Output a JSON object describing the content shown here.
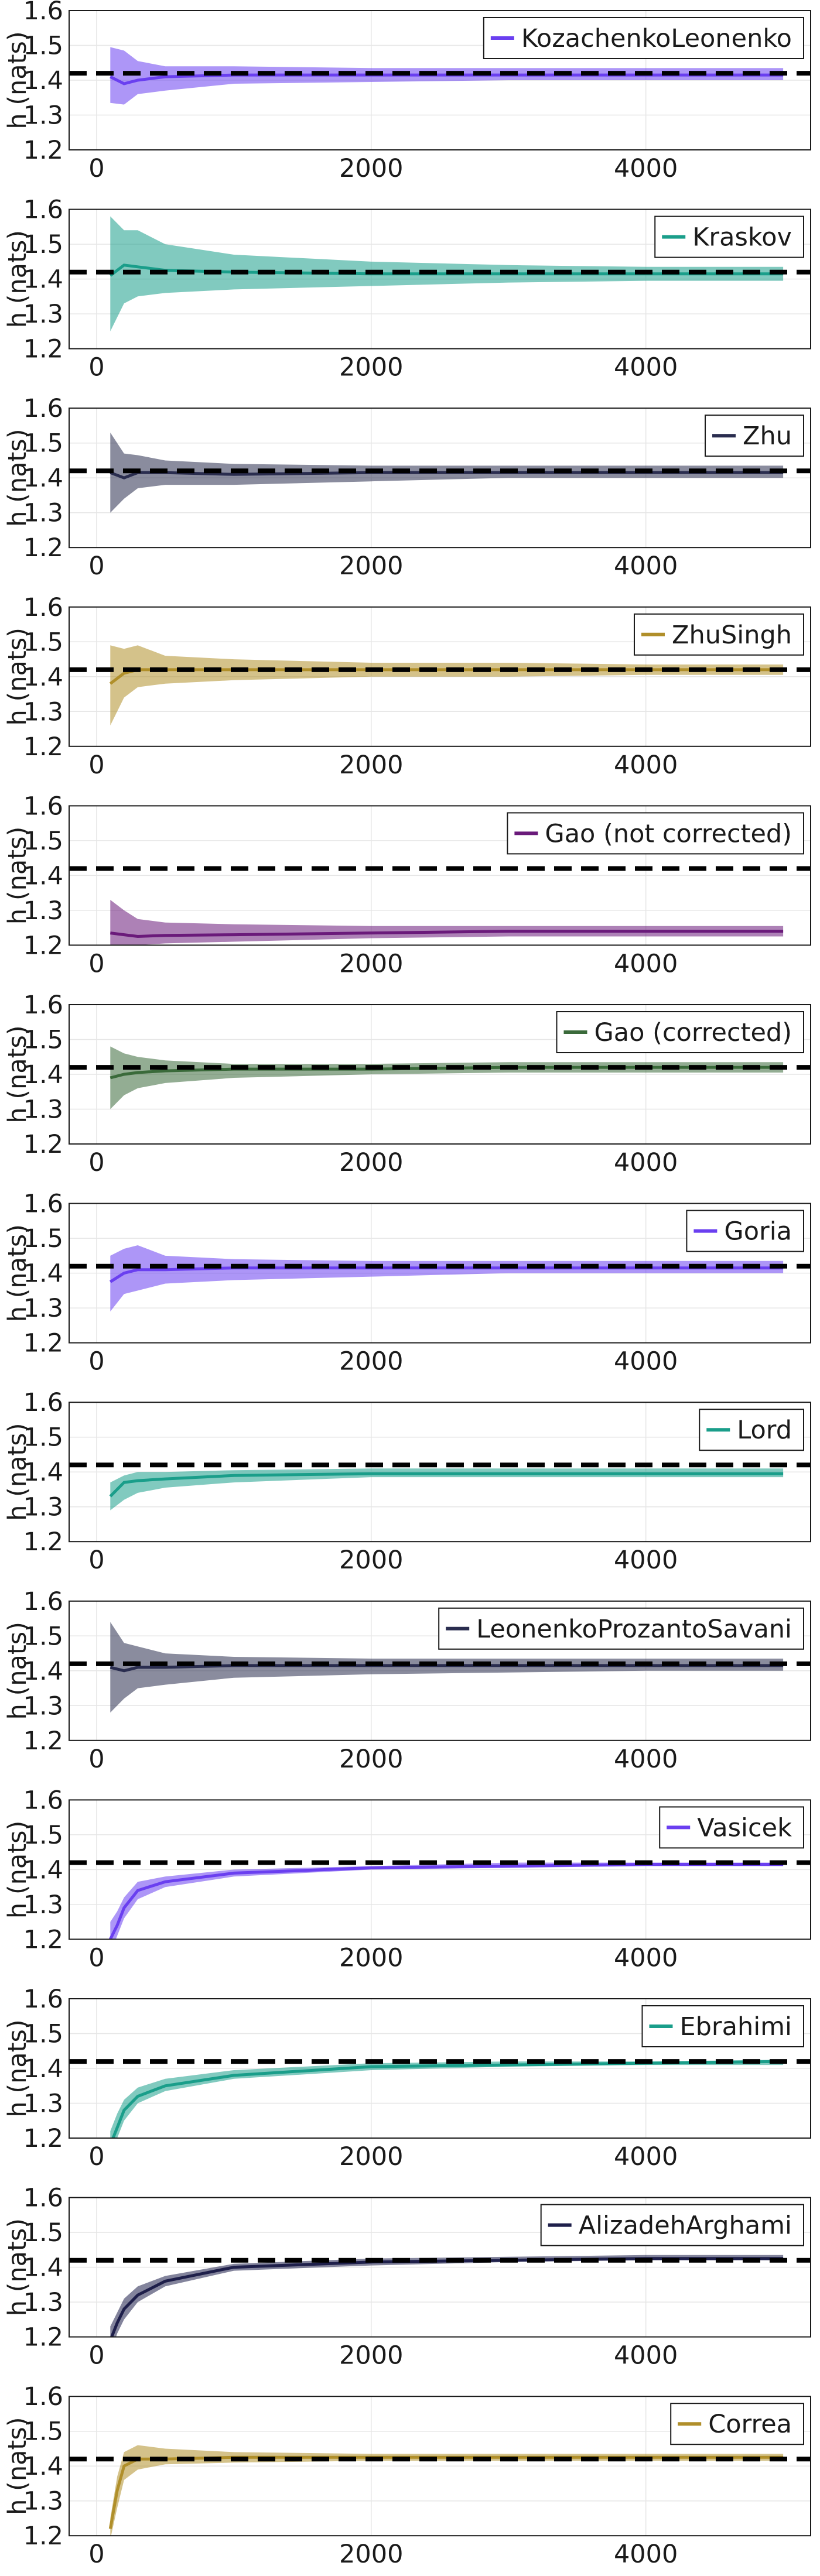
{
  "reference_value": 1.42,
  "ylabel": "h (nats)",
  "x_ticks": [
    0,
    2000,
    4000
  ],
  "y_ticks": [
    1.2,
    1.3,
    1.4,
    1.5,
    1.6
  ],
  "chart_data": [
    {
      "type": "line",
      "legend": "KozachenkoLeonenko",
      "color": "#6a3ff0",
      "xlim": [
        -200,
        5200
      ],
      "ylim": [
        1.2,
        1.6
      ],
      "x": [
        100,
        200,
        300,
        500,
        1000,
        2000,
        3000,
        4000,
        5000
      ],
      "mean": [
        1.41,
        1.39,
        1.4,
        1.41,
        1.415,
        1.415,
        1.415,
        1.415,
        1.415
      ],
      "lower": [
        1.335,
        1.33,
        1.36,
        1.37,
        1.39,
        1.395,
        1.4,
        1.4,
        1.4
      ],
      "upper": [
        1.495,
        1.485,
        1.455,
        1.44,
        1.44,
        1.435,
        1.435,
        1.435,
        1.435
      ]
    },
    {
      "type": "line",
      "legend": "Kraskov",
      "color": "#1a9e8a",
      "xlim": [
        -200,
        5200
      ],
      "ylim": [
        1.2,
        1.6
      ],
      "x": [
        100,
        200,
        300,
        500,
        1000,
        2000,
        3000,
        4000,
        5000
      ],
      "mean": [
        1.41,
        1.44,
        1.435,
        1.425,
        1.42,
        1.415,
        1.415,
        1.415,
        1.415
      ],
      "lower": [
        1.25,
        1.33,
        1.35,
        1.36,
        1.37,
        1.38,
        1.39,
        1.395,
        1.395
      ],
      "upper": [
        1.58,
        1.54,
        1.54,
        1.5,
        1.47,
        1.45,
        1.44,
        1.435,
        1.435
      ]
    },
    {
      "type": "line",
      "legend": "Zhu",
      "color": "#2a2d4f",
      "xlim": [
        -200,
        5200
      ],
      "ylim": [
        1.2,
        1.6
      ],
      "x": [
        100,
        200,
        300,
        500,
        1000,
        2000,
        3000,
        4000,
        5000
      ],
      "mean": [
        1.415,
        1.4,
        1.415,
        1.415,
        1.41,
        1.415,
        1.415,
        1.415,
        1.415
      ],
      "lower": [
        1.3,
        1.34,
        1.37,
        1.38,
        1.38,
        1.39,
        1.4,
        1.4,
        1.4
      ],
      "upper": [
        1.53,
        1.47,
        1.465,
        1.45,
        1.44,
        1.435,
        1.435,
        1.435,
        1.435
      ]
    },
    {
      "type": "line",
      "legend": "ZhuSingh",
      "color": "#b08f2a",
      "xlim": [
        -200,
        5200
      ],
      "ylim": [
        1.2,
        1.6
      ],
      "x": [
        100,
        200,
        300,
        500,
        1000,
        2000,
        3000,
        4000,
        5000
      ],
      "mean": [
        1.38,
        1.41,
        1.42,
        1.42,
        1.42,
        1.42,
        1.42,
        1.42,
        1.42
      ],
      "lower": [
        1.26,
        1.34,
        1.37,
        1.38,
        1.39,
        1.4,
        1.4,
        1.405,
        1.405
      ],
      "upper": [
        1.49,
        1.48,
        1.49,
        1.46,
        1.45,
        1.44,
        1.44,
        1.435,
        1.435
      ]
    },
    {
      "type": "line",
      "legend": "Gao (not corrected)",
      "color": "#6a1a7a",
      "xlim": [
        -200,
        5200
      ],
      "ylim": [
        1.2,
        1.6
      ],
      "x": [
        100,
        200,
        300,
        500,
        1000,
        2000,
        3000,
        4000,
        5000
      ],
      "mean": [
        1.235,
        1.23,
        1.225,
        1.228,
        1.23,
        1.235,
        1.24,
        1.24,
        1.24
      ],
      "lower": [
        1.2,
        1.2,
        1.2,
        1.205,
        1.21,
        1.22,
        1.225,
        1.225,
        1.225
      ],
      "upper": [
        1.33,
        1.3,
        1.275,
        1.265,
        1.26,
        1.255,
        1.255,
        1.255,
        1.255
      ]
    },
    {
      "type": "line",
      "legend": "Gao (corrected)",
      "color": "#3a6a3a",
      "xlim": [
        -200,
        5200
      ],
      "ylim": [
        1.2,
        1.6
      ],
      "x": [
        100,
        200,
        300,
        500,
        1000,
        2000,
        3000,
        4000,
        5000
      ],
      "mean": [
        1.39,
        1.4,
        1.405,
        1.41,
        1.415,
        1.415,
        1.42,
        1.42,
        1.42
      ],
      "lower": [
        1.3,
        1.34,
        1.36,
        1.375,
        1.39,
        1.4,
        1.405,
        1.405,
        1.405
      ],
      "upper": [
        1.48,
        1.46,
        1.45,
        1.44,
        1.43,
        1.43,
        1.435,
        1.435,
        1.435
      ]
    },
    {
      "type": "line",
      "legend": "Goria",
      "color": "#6a3ff0",
      "xlim": [
        -200,
        5200
      ],
      "ylim": [
        1.2,
        1.6
      ],
      "x": [
        100,
        200,
        300,
        500,
        1000,
        2000,
        3000,
        4000,
        5000
      ],
      "mean": [
        1.375,
        1.4,
        1.41,
        1.41,
        1.415,
        1.415,
        1.415,
        1.415,
        1.415
      ],
      "lower": [
        1.29,
        1.34,
        1.35,
        1.37,
        1.38,
        1.39,
        1.4,
        1.4,
        1.4
      ],
      "upper": [
        1.45,
        1.47,
        1.48,
        1.45,
        1.44,
        1.435,
        1.435,
        1.435,
        1.435
      ]
    },
    {
      "type": "line",
      "legend": "Lord",
      "color": "#1a9e8a",
      "xlim": [
        -200,
        5200
      ],
      "ylim": [
        1.2,
        1.6
      ],
      "x": [
        100,
        200,
        300,
        500,
        1000,
        2000,
        3000,
        4000,
        5000
      ],
      "mean": [
        1.33,
        1.37,
        1.375,
        1.38,
        1.39,
        1.395,
        1.395,
        1.395,
        1.395
      ],
      "lower": [
        1.29,
        1.32,
        1.34,
        1.355,
        1.37,
        1.385,
        1.385,
        1.385,
        1.385
      ],
      "upper": [
        1.37,
        1.39,
        1.4,
        1.4,
        1.405,
        1.41,
        1.41,
        1.41,
        1.41
      ]
    },
    {
      "type": "line",
      "legend": "LeonenkoProzantoSavani",
      "color": "#2a2d4f",
      "xlim": [
        -200,
        5200
      ],
      "ylim": [
        1.2,
        1.6
      ],
      "x": [
        100,
        200,
        300,
        500,
        1000,
        2000,
        3000,
        4000,
        5000
      ],
      "mean": [
        1.41,
        1.4,
        1.41,
        1.41,
        1.415,
        1.415,
        1.415,
        1.415,
        1.415
      ],
      "lower": [
        1.28,
        1.32,
        1.35,
        1.36,
        1.38,
        1.39,
        1.395,
        1.4,
        1.4
      ],
      "upper": [
        1.54,
        1.48,
        1.47,
        1.45,
        1.44,
        1.435,
        1.435,
        1.435,
        1.435
      ]
    },
    {
      "type": "line",
      "legend": "Vasicek",
      "color": "#6a3ff0",
      "xlim": [
        -200,
        5200
      ],
      "ylim": [
        1.2,
        1.6
      ],
      "x": [
        100,
        150,
        200,
        300,
        500,
        1000,
        2000,
        3000,
        4000,
        5000
      ],
      "mean": [
        1.2,
        1.24,
        1.29,
        1.34,
        1.365,
        1.39,
        1.405,
        1.41,
        1.415,
        1.415
      ],
      "lower": [
        1.16,
        1.21,
        1.26,
        1.315,
        1.35,
        1.38,
        1.4,
        1.405,
        1.41,
        1.41
      ],
      "upper": [
        1.25,
        1.28,
        1.32,
        1.365,
        1.38,
        1.4,
        1.41,
        1.42,
        1.42,
        1.42
      ]
    },
    {
      "type": "line",
      "legend": "Ebrahimi",
      "color": "#1a9e8a",
      "xlim": [
        -200,
        5200
      ],
      "ylim": [
        1.2,
        1.6
      ],
      "x": [
        100,
        150,
        200,
        300,
        500,
        1000,
        2000,
        3000,
        4000,
        5000
      ],
      "mean": [
        1.18,
        1.23,
        1.28,
        1.32,
        1.35,
        1.38,
        1.405,
        1.41,
        1.415,
        1.42
      ],
      "lower": [
        1.14,
        1.2,
        1.25,
        1.3,
        1.335,
        1.37,
        1.395,
        1.405,
        1.41,
        1.41
      ],
      "upper": [
        1.22,
        1.27,
        1.31,
        1.345,
        1.37,
        1.395,
        1.415,
        1.42,
        1.42,
        1.425
      ]
    },
    {
      "type": "line",
      "legend": "AlizadehArghami",
      "color": "#1e1f4a",
      "xlim": [
        -200,
        5200
      ],
      "ylim": [
        1.2,
        1.6
      ],
      "x": [
        100,
        150,
        200,
        300,
        500,
        1000,
        2000,
        3000,
        4000,
        5000
      ],
      "mean": [
        1.19,
        1.24,
        1.28,
        1.32,
        1.36,
        1.4,
        1.415,
        1.42,
        1.425,
        1.425
      ],
      "lower": [
        1.15,
        1.21,
        1.25,
        1.3,
        1.345,
        1.39,
        1.405,
        1.415,
        1.42,
        1.42
      ],
      "upper": [
        1.23,
        1.27,
        1.31,
        1.345,
        1.375,
        1.41,
        1.425,
        1.43,
        1.435,
        1.435
      ]
    },
    {
      "type": "line",
      "legend": "Correa",
      "color": "#b08f2a",
      "xlim": [
        -200,
        5200
      ],
      "ylim": [
        1.2,
        1.6
      ],
      "x": [
        100,
        150,
        200,
        300,
        500,
        1000,
        2000,
        3000,
        4000,
        5000
      ],
      "mean": [
        1.22,
        1.33,
        1.4,
        1.42,
        1.42,
        1.425,
        1.425,
        1.425,
        1.425,
        1.425
      ],
      "lower": [
        1.19,
        1.28,
        1.36,
        1.39,
        1.405,
        1.41,
        1.415,
        1.415,
        1.415,
        1.415
      ],
      "upper": [
        1.25,
        1.37,
        1.44,
        1.46,
        1.45,
        1.44,
        1.435,
        1.435,
        1.435,
        1.435
      ]
    }
  ]
}
